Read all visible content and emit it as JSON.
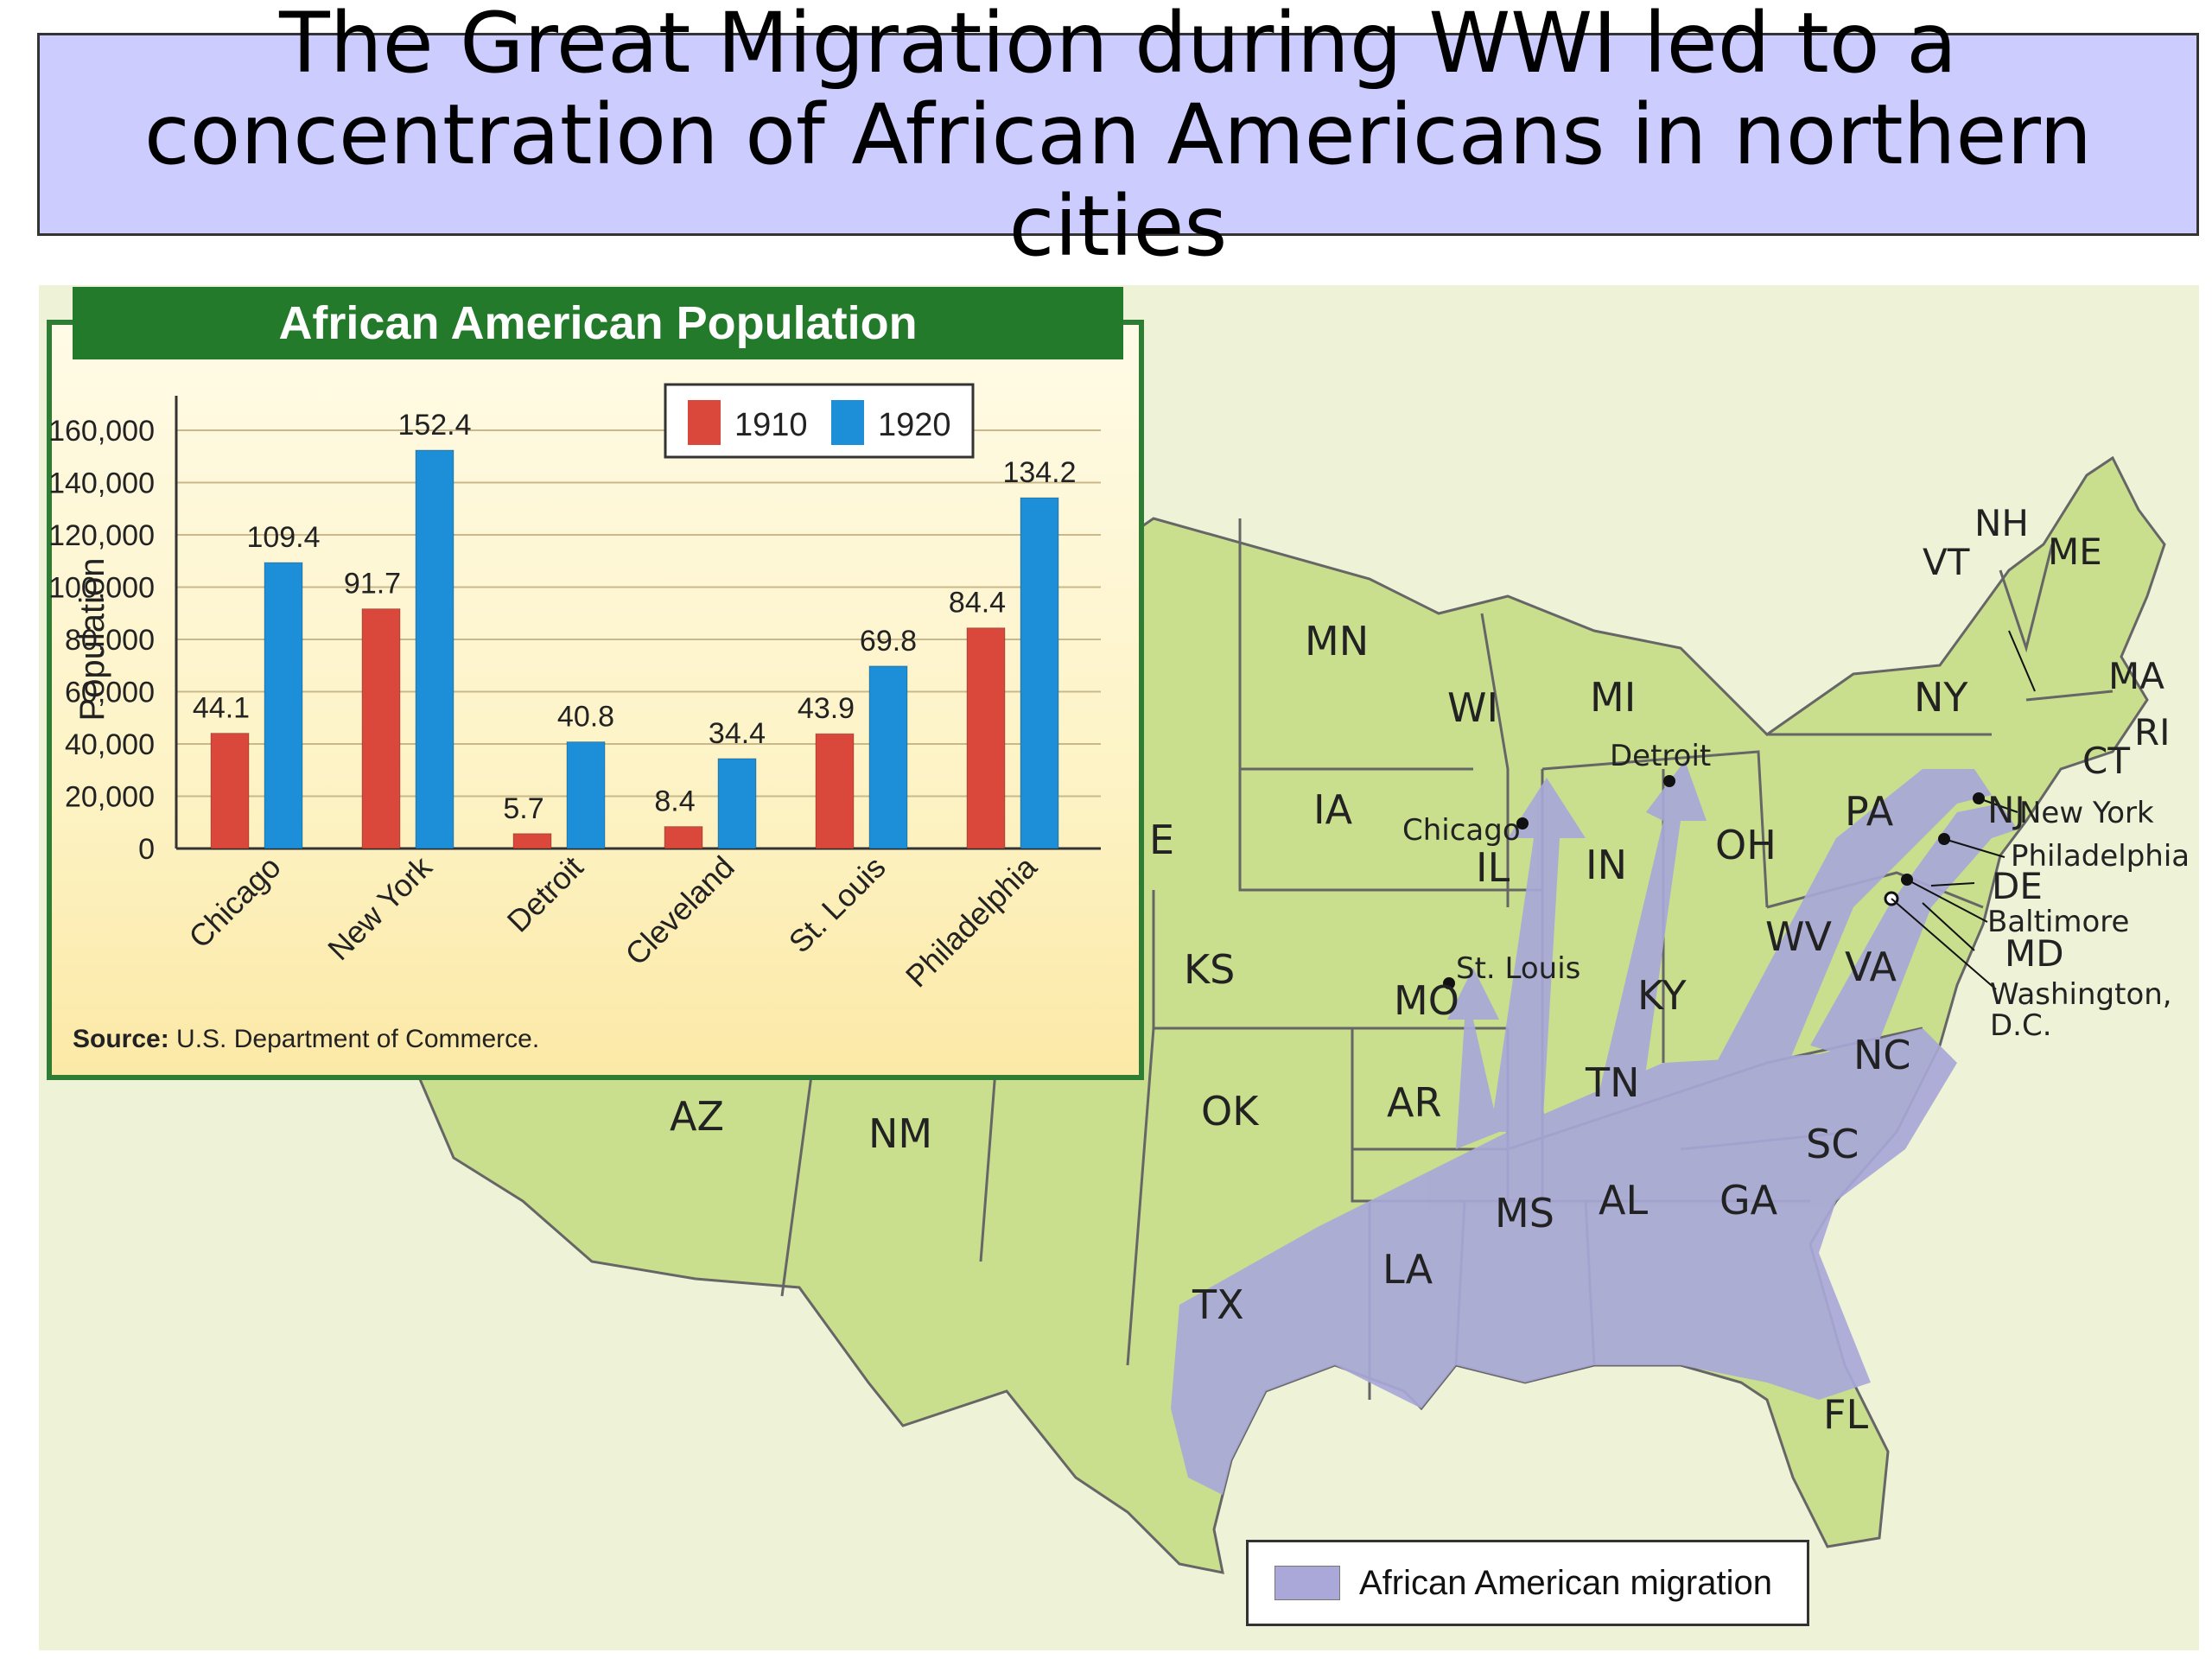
{
  "title": {
    "line1": "The Great Migration during WWI led to a",
    "line2": "concentration of African Americans in northern cities"
  },
  "map": {
    "colors": {
      "land": "#c9df8e",
      "ocean": "#eef3d8",
      "migration": "#a9a8d8",
      "border": "#666666"
    },
    "states": [
      "MN",
      "WI",
      "MI",
      "IA",
      "IL",
      "IN",
      "OH",
      "MO",
      "KS",
      "KY",
      "WV",
      "VA",
      "PA",
      "NY",
      "VT",
      "NH",
      "ME",
      "MA",
      "RI",
      "CT",
      "NJ",
      "DE",
      "MD",
      "NC",
      "TN",
      "AR",
      "OK",
      "SC",
      "GA",
      "AL",
      "MS",
      "LA",
      "TX",
      "AZ",
      "NM",
      "FL",
      "E"
    ],
    "cities": [
      "Chicago",
      "Detroit",
      "St. Louis",
      "New York",
      "Philadelphia",
      "Baltimore",
      "Washington, D.C."
    ],
    "legend": {
      "label": "African American migration"
    }
  },
  "chart_data": {
    "type": "bar",
    "title": "African American Population",
    "ylabel": "Population",
    "y_ticks": [
      "160,000",
      "140,000",
      "120,000",
      "100,000",
      "80,000",
      "60,000",
      "40,000",
      "20,000",
      "0"
    ],
    "ylim": [
      0,
      160000
    ],
    "categories": [
      "Chicago",
      "New York",
      "Detroit",
      "Cleveland",
      "St. Louis",
      "Philadelphia"
    ],
    "series": [
      {
        "name": "1910",
        "color": "#d9483b",
        "values": [
          44.1,
          91.7,
          5.7,
          8.4,
          43.9,
          84.4
        ]
      },
      {
        "name": "1920",
        "color": "#1c8fd8",
        "values": [
          109.4,
          152.4,
          40.8,
          34.4,
          69.8,
          134.2
        ]
      }
    ],
    "source_label": "Source:",
    "source_text": "U.S. Department of Commerce."
  }
}
